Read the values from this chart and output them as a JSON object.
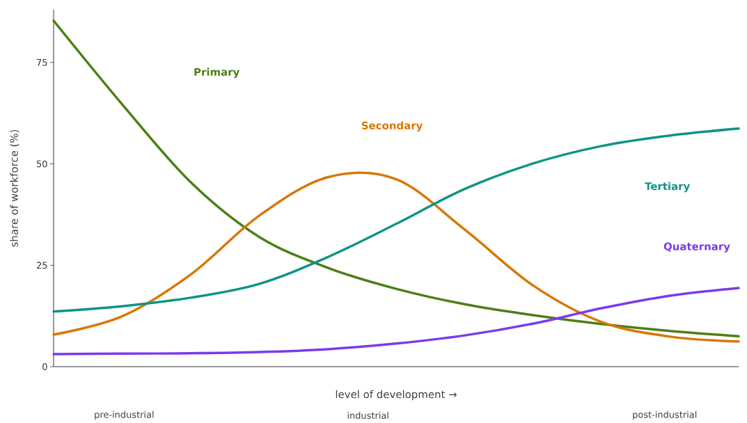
{
  "chart_data": {
    "type": "line",
    "xlabel": "level of development →",
    "ylabel": "share of workforce (%)",
    "categories": [
      null,
      null,
      null,
      null,
      null,
      null,
      null,
      null,
      null,
      null,
      null
    ],
    "annotations": [
      "pre-industrial",
      "industrial",
      "post-industrial"
    ],
    "ylim": [
      0,
      88
    ],
    "yticks": [
      0,
      25,
      50,
      75
    ],
    "grid": false,
    "legend": false,
    "marker": "none",
    "line_style": "solid",
    "series": [
      {
        "name": "Primary",
        "color": "#4d7f17",
        "values": [
          85.3,
          64.7,
          45.5,
          32,
          24.4,
          19.2,
          15.4,
          12.7,
          10.5,
          8.8,
          7.5
        ]
      },
      {
        "name": "Secondary",
        "color": "#d97706",
        "values": [
          7.9,
          12.4,
          22.7,
          37.2,
          46.7,
          46.2,
          33.8,
          20,
          11,
          7.4,
          6.2
        ]
      },
      {
        "name": "Tertiary",
        "color": "#0d9488",
        "values": [
          13.6,
          14.9,
          17,
          20.4,
          27,
          35.2,
          43.8,
          50.1,
          54.4,
          57,
          58.7
        ]
      },
      {
        "name": "Quaternary",
        "color": "#7c3aed",
        "values": [
          3.1,
          3.2,
          3.3,
          3.6,
          4.3,
          5.7,
          7.7,
          10.6,
          14.4,
          17.5,
          19.4
        ]
      }
    ]
  }
}
